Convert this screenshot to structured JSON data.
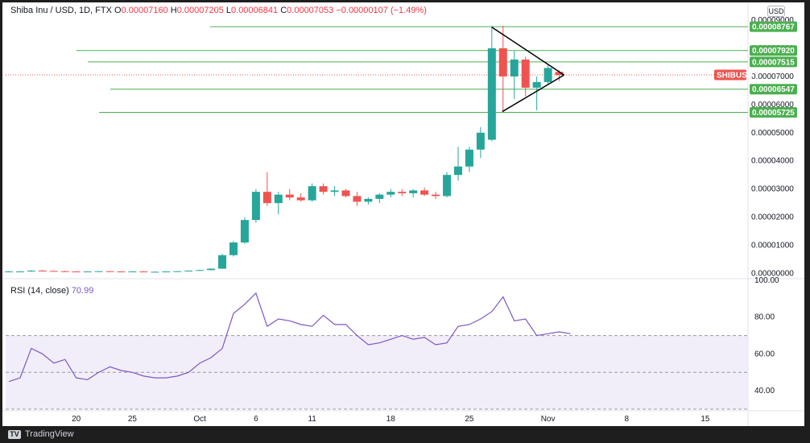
{
  "legend": {
    "symbol": "Shiba Inu / USD, 1D, FTX",
    "open_label": "O",
    "open": "0.00007160",
    "high_label": "H",
    "high": "0.00007205",
    "low_label": "L",
    "low": "0.00006841",
    "close_label": "C",
    "close": "0.00007053",
    "change": "−0.00000107 (−1.49%)"
  },
  "currency_badge": "USD",
  "footer_brand": "TradingView",
  "colors": {
    "up": "#26a69a",
    "down": "#ef5350",
    "level": "#4caf50",
    "rsi_line": "#7e57c2",
    "rsi_band": "#ede7f6",
    "symbol_tag": "#ef5350"
  },
  "chart_data": [
    {
      "type": "candlestick",
      "title": "Shiba Inu / USD, 1D, FTX",
      "x_ticks": [
        "20",
        "25",
        "Oct",
        "6",
        "11",
        "18",
        "25",
        "Nov",
        "8",
        "15"
      ],
      "y_ticks": [
        "0.00000000",
        "0.00001000",
        "0.00002000",
        "0.00003000",
        "0.00004000",
        "0.00005000",
        "0.00006000",
        "0.00007000",
        "0.00008000",
        "0.00009000"
      ],
      "ylim": [
        -1e-06,
        9e-05
      ],
      "grid": false,
      "current_price_label": "SHIBUSD",
      "current_price": 7.053e-05,
      "horizontal_levels": [
        {
          "label": "0.00008767",
          "value": 8.767e-05
        },
        {
          "label": "0.00007920",
          "value": 7.92e-05
        },
        {
          "label": "0.00007515",
          "value": 7.515e-05
        },
        {
          "label": "0.00006547",
          "value": 6.547e-05
        },
        {
          "label": "0.00005725",
          "value": 5.725e-05
        }
      ],
      "triangle_pattern": {
        "apex_price": 7.05e-05,
        "upper_start_price": 8.75e-05,
        "lower_start_price": 5.75e-05
      },
      "candles": [
        {
          "o": 6e-07,
          "h": 9e-07,
          "l": 5e-07,
          "c": 7e-07
        },
        {
          "o": 7e-07,
          "h": 8e-07,
          "l": 6e-07,
          "c": 7e-07
        },
        {
          "o": 7e-07,
          "h": 1.2e-06,
          "l": 6e-07,
          "c": 1e-06
        },
        {
          "o": 1e-06,
          "h": 1.3e-06,
          "l": 8e-07,
          "c": 9e-07
        },
        {
          "o": 9e-07,
          "h": 1.1e-06,
          "l": 7e-07,
          "c": 8e-07
        },
        {
          "o": 8e-07,
          "h": 1e-06,
          "l": 6e-07,
          "c": 7e-07
        },
        {
          "o": 7e-07,
          "h": 8e-07,
          "l": 5e-07,
          "c": 6e-07
        },
        {
          "o": 6e-07,
          "h": 8e-07,
          "l": 5e-07,
          "c": 7e-07
        },
        {
          "o": 7e-07,
          "h": 9e-07,
          "l": 6e-07,
          "c": 8e-07
        },
        {
          "o": 8e-07,
          "h": 9e-07,
          "l": 6e-07,
          "c": 7e-07
        },
        {
          "o": 7e-07,
          "h": 8e-07,
          "l": 5e-07,
          "c": 6e-07
        },
        {
          "o": 6e-07,
          "h": 8e-07,
          "l": 5e-07,
          "c": 7e-07
        },
        {
          "o": 7e-07,
          "h": 8e-07,
          "l": 5e-07,
          "c": 6e-07
        },
        {
          "o": 6e-07,
          "h": 7e-07,
          "l": 5e-07,
          "c": 6e-07
        },
        {
          "o": 6e-07,
          "h": 8e-07,
          "l": 5e-07,
          "c": 7e-07
        },
        {
          "o": 7e-07,
          "h": 9e-07,
          "l": 6e-07,
          "c": 8e-07
        },
        {
          "o": 8e-07,
          "h": 1.1e-06,
          "l": 7e-07,
          "c": 1e-06
        },
        {
          "o": 1e-06,
          "h": 1.3e-06,
          "l": 9e-07,
          "c": 1.2e-06
        },
        {
          "o": 1.2e-06,
          "h": 1.8e-06,
          "l": 1.1e-06,
          "c": 1.7e-06
        },
        {
          "o": 1.7e-06,
          "h": 7e-06,
          "l": 1.6e-06,
          "c": 6.5e-06
        },
        {
          "o": 6.5e-06,
          "h": 1.15e-05,
          "l": 6e-06,
          "c": 1.1e-05
        },
        {
          "o": 1.1e-05,
          "h": 2e-05,
          "l": 1.05e-05,
          "c": 1.9e-05
        },
        {
          "o": 1.9e-05,
          "h": 3e-05,
          "l": 1.8e-05,
          "c": 2.9e-05
        },
        {
          "o": 2.9e-05,
          "h": 3.6e-05,
          "l": 2.4e-05,
          "c": 2.5e-05
        },
        {
          "o": 2.5e-05,
          "h": 2.9e-05,
          "l": 2.1e-05,
          "c": 2.8e-05
        },
        {
          "o": 2.8e-05,
          "h": 3e-05,
          "l": 2.6e-05,
          "c": 2.7e-05
        },
        {
          "o": 2.7e-05,
          "h": 2.85e-05,
          "l": 2.55e-05,
          "c": 2.6e-05
        },
        {
          "o": 2.6e-05,
          "h": 3.2e-05,
          "l": 2.55e-05,
          "c": 3.1e-05
        },
        {
          "o": 3.1e-05,
          "h": 3.2e-05,
          "l": 2.8e-05,
          "c": 2.9e-05
        },
        {
          "o": 2.9e-05,
          "h": 3.1e-05,
          "l": 2.75e-05,
          "c": 2.95e-05
        },
        {
          "o": 2.95e-05,
          "h": 3e-05,
          "l": 2.7e-05,
          "c": 2.75e-05
        },
        {
          "o": 2.75e-05,
          "h": 2.9e-05,
          "l": 2.4e-05,
          "c": 2.55e-05
        },
        {
          "o": 2.55e-05,
          "h": 2.7e-05,
          "l": 2.45e-05,
          "c": 2.65e-05
        },
        {
          "o": 2.65e-05,
          "h": 2.85e-05,
          "l": 2.5e-05,
          "c": 2.8e-05
        },
        {
          "o": 2.8e-05,
          "h": 3e-05,
          "l": 2.7e-05,
          "c": 2.9e-05
        },
        {
          "o": 2.9e-05,
          "h": 3e-05,
          "l": 2.75e-05,
          "c": 2.85e-05
        },
        {
          "o": 2.85e-05,
          "h": 3e-05,
          "l": 2.7e-05,
          "c": 2.95e-05
        },
        {
          "o": 2.95e-05,
          "h": 3.05e-05,
          "l": 2.75e-05,
          "c": 2.8e-05
        },
        {
          "o": 2.8e-05,
          "h": 2.9e-05,
          "l": 2.65e-05,
          "c": 2.75e-05
        },
        {
          "o": 2.75e-05,
          "h": 3.6e-05,
          "l": 2.7e-05,
          "c": 3.5e-05
        },
        {
          "o": 3.5e-05,
          "h": 4.5e-05,
          "l": 3.3e-05,
          "c": 3.8e-05
        },
        {
          "o": 3.8e-05,
          "h": 4.5e-05,
          "l": 3.6e-05,
          "c": 4.4e-05
        },
        {
          "o": 4.4e-05,
          "h": 5.2e-05,
          "l": 4.1e-05,
          "c": 5e-05
        },
        {
          "o": 4.75e-05,
          "h": 8.8e-05,
          "l": 4.7e-05,
          "c": 8e-05
        },
        {
          "o": 8e-05,
          "h": 8.8e-05,
          "l": 5.75e-05,
          "c": 7e-05
        },
        {
          "o": 7e-05,
          "h": 7.9e-05,
          "l": 6.2e-05,
          "c": 7.6e-05
        },
        {
          "o": 7.6e-05,
          "h": 7.7e-05,
          "l": 6.3e-05,
          "c": 6.6e-05
        },
        {
          "o": 6.6e-05,
          "h": 7e-05,
          "l": 5.8e-05,
          "c": 6.8e-05
        },
        {
          "o": 6.8e-05,
          "h": 7.4e-05,
          "l": 6.7e-05,
          "c": 7.3e-05
        },
        {
          "o": 7.16e-05,
          "h": 7.21e-05,
          "l": 6.84e-05,
          "c": 7.05e-05
        }
      ]
    },
    {
      "type": "line",
      "title": "RSI (14, close)",
      "current_value": "70.99",
      "y_ticks": [
        "40.00",
        "60.00",
        "80.00",
        "100.00"
      ],
      "ylim": [
        30,
        100
      ],
      "band": {
        "upper": 70,
        "middle": 50,
        "lower": 30
      },
      "values": [
        45,
        47,
        63,
        60,
        55,
        57,
        47,
        46,
        50,
        53,
        51,
        50,
        48,
        47,
        47,
        48,
        50,
        55,
        58,
        63,
        82,
        87,
        93,
        75,
        79,
        78,
        76,
        75,
        81,
        76,
        76,
        70,
        65,
        66,
        68,
        70,
        68,
        69,
        65,
        66,
        75,
        76,
        79,
        83,
        91,
        78,
        79,
        70,
        71,
        72,
        71
      ]
    }
  ]
}
